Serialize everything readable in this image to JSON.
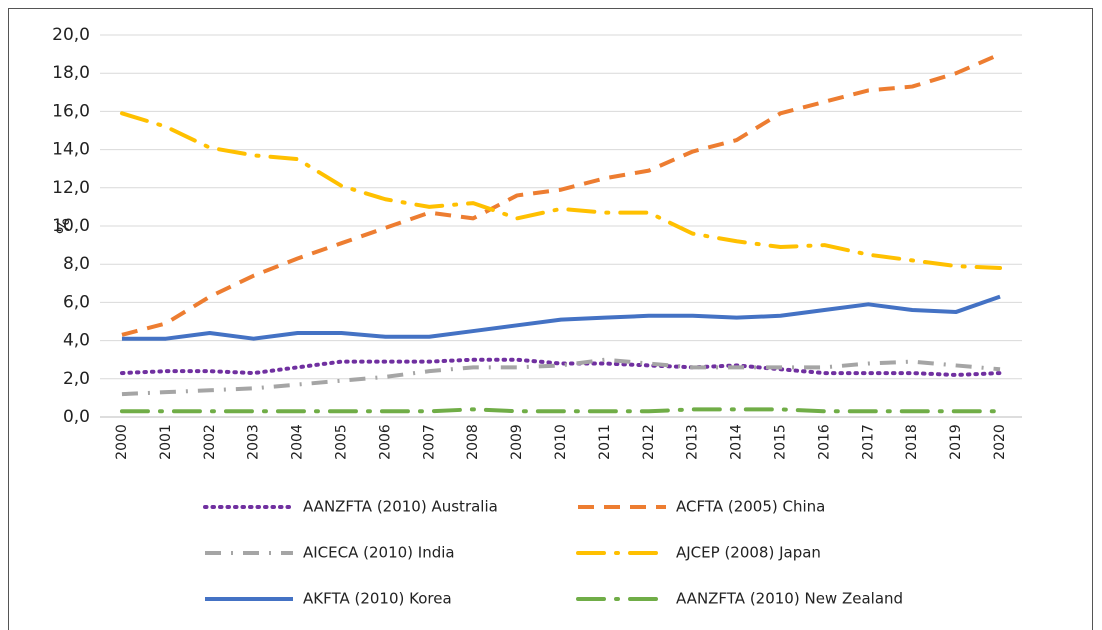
{
  "chart_data": {
    "type": "line",
    "ylabel": "%",
    "categories": [
      "2000",
      "2001",
      "2002",
      "2003",
      "2004",
      "2005",
      "2006",
      "2007",
      "2008",
      "2009",
      "2010",
      "2011",
      "2012",
      "2013",
      "2014",
      "2015",
      "2016",
      "2017",
      "2018",
      "2019",
      "2020"
    ],
    "ylim": [
      0,
      20
    ],
    "yticks": [
      {
        "value": 0,
        "label": "0,0"
      },
      {
        "value": 2,
        "label": "2,0"
      },
      {
        "value": 4,
        "label": "4,0"
      },
      {
        "value": 6,
        "label": "6,0"
      },
      {
        "value": 8,
        "label": "8,0"
      },
      {
        "value": 10,
        "label": "10,0"
      },
      {
        "value": 12,
        "label": "12,0"
      },
      {
        "value": 14,
        "label": "14,0"
      },
      {
        "value": 16,
        "label": "16,0"
      },
      {
        "value": 18,
        "label": "18,0"
      },
      {
        "value": 20,
        "label": "20,0"
      }
    ],
    "grid": true,
    "legend": "bottom",
    "series": [
      {
        "name": "AANZFTA (2010) Australia",
        "color": "#7030a0",
        "style": "dotted",
        "values": [
          2.3,
          2.4,
          2.4,
          2.3,
          2.6,
          2.9,
          2.9,
          2.9,
          3.0,
          3.0,
          2.8,
          2.8,
          2.7,
          2.6,
          2.7,
          2.5,
          2.3,
          2.3,
          2.3,
          2.2,
          2.3
        ]
      },
      {
        "name": "ACFTA (2005) China",
        "color": "#ed7d31",
        "style": "dashed",
        "values": [
          4.3,
          4.9,
          6.3,
          7.4,
          8.3,
          9.1,
          9.9,
          10.7,
          10.4,
          11.6,
          11.9,
          12.5,
          12.9,
          13.9,
          14.5,
          15.9,
          16.5,
          17.1,
          17.3,
          18.0,
          19.0
        ]
      },
      {
        "name": "AICECA (2010) India",
        "color": "#a5a5a5",
        "style": "dash-dot",
        "values": [
          1.2,
          1.3,
          1.4,
          1.5,
          1.7,
          1.9,
          2.1,
          2.4,
          2.6,
          2.6,
          2.7,
          3.0,
          2.8,
          2.6,
          2.6,
          2.6,
          2.6,
          2.8,
          2.9,
          2.7,
          2.5
        ]
      },
      {
        "name": "AJCEP (2008) Japan",
        "color": "#ffc000",
        "style": "long-dash-dot",
        "values": [
          15.9,
          15.2,
          14.1,
          13.7,
          13.5,
          12.1,
          11.4,
          11.0,
          11.2,
          10.4,
          10.9,
          10.7,
          10.7,
          9.6,
          9.2,
          8.9,
          9.0,
          8.5,
          8.2,
          7.9,
          7.8
        ]
      },
      {
        "name": "AKFTA (2010) Korea",
        "color": "#4472c4",
        "style": "solid",
        "values": [
          4.1,
          4.1,
          4.4,
          4.1,
          4.4,
          4.4,
          4.2,
          4.2,
          4.5,
          4.8,
          5.1,
          5.2,
          5.3,
          5.3,
          5.2,
          5.3,
          5.6,
          5.9,
          5.6,
          5.5,
          6.3
        ]
      },
      {
        "name": "AANZFTA (2010) New Zealand",
        "color": "#70ad47",
        "style": "long-dash-dot",
        "values": [
          0.3,
          0.3,
          0.3,
          0.3,
          0.3,
          0.3,
          0.3,
          0.3,
          0.4,
          0.3,
          0.3,
          0.3,
          0.3,
          0.4,
          0.4,
          0.4,
          0.3,
          0.3,
          0.3,
          0.3,
          0.3
        ]
      }
    ]
  }
}
